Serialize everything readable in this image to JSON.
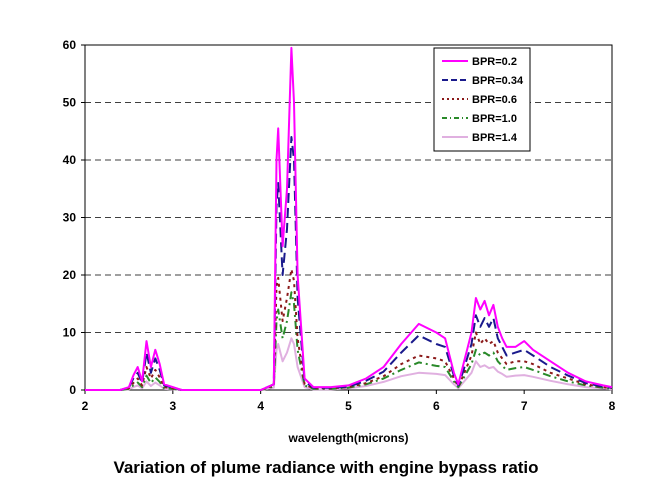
{
  "chart_data": {
    "type": "line",
    "title": "Variation of plume radiance with engine bypass ratio",
    "xlabel": "wavelength(microns)",
    "ylabel": "",
    "xlim": [
      2,
      8
    ],
    "ylim": [
      0,
      60
    ],
    "xticks": [
      2,
      3,
      4,
      5,
      6,
      7,
      8
    ],
    "yticks": [
      0,
      10,
      20,
      30,
      40,
      50,
      60
    ],
    "grid": "horizontal-dashed",
    "legend_position": "top-right",
    "x": [
      2.0,
      2.4,
      2.5,
      2.55,
      2.6,
      2.65,
      2.7,
      2.75,
      2.8,
      2.85,
      2.9,
      3.0,
      3.1,
      3.5,
      4.0,
      4.15,
      4.18,
      4.2,
      4.25,
      4.3,
      4.35,
      4.38,
      4.42,
      4.5,
      4.6,
      4.8,
      5.0,
      5.2,
      5.4,
      5.6,
      5.8,
      6.0,
      6.1,
      6.2,
      6.25,
      6.3,
      6.4,
      6.45,
      6.5,
      6.55,
      6.6,
      6.65,
      6.7,
      6.75,
      6.8,
      6.9,
      7.0,
      7.1,
      7.3,
      7.5,
      7.7,
      7.9,
      8.0
    ],
    "series": [
      {
        "name": "BPR=0.2",
        "color": "#ff00ff",
        "dash": "solid",
        "values": [
          0,
          0,
          0.5,
          2.5,
          4,
          1.5,
          8.5,
          4,
          7,
          4.5,
          1,
          0.5,
          0,
          0,
          0,
          1,
          40,
          45.5,
          25,
          35,
          59.5,
          50,
          20,
          2,
          0.5,
          0.5,
          0.8,
          2,
          4,
          8,
          11.5,
          10,
          9,
          3,
          1,
          4,
          10,
          16,
          14,
          15.5,
          13,
          14.8,
          11,
          9,
          7.5,
          7.5,
          8.5,
          7,
          5,
          3,
          1.5,
          0.8,
          0.5
        ]
      },
      {
        "name": "BPR=0.34",
        "color": "#1a1a8c",
        "dash": "10,5",
        "values": [
          0,
          0,
          0.4,
          2,
          3,
          1.2,
          6.5,
          3,
          5.5,
          3.5,
          0.8,
          0.4,
          0,
          0,
          0,
          1,
          32,
          36,
          20,
          28,
          44,
          40,
          16,
          1.5,
          0.4,
          0.4,
          0.6,
          1.6,
          3.2,
          6.5,
          9.5,
          8,
          7.5,
          2.5,
          0.8,
          3,
          8,
          13,
          11,
          12.5,
          11,
          12.5,
          9,
          7.5,
          6,
          6.5,
          7,
          6,
          4,
          2.5,
          1.2,
          0.6,
          0.4
        ]
      },
      {
        "name": "BPR=0.6",
        "color": "#8b1a1a",
        "dash": "3,4",
        "values": [
          0,
          0,
          0.3,
          1.2,
          2,
          0.8,
          4,
          2,
          3.5,
          2.2,
          0.5,
          0.3,
          0,
          0,
          0,
          0.8,
          18,
          19.5,
          12,
          16,
          21,
          19,
          9,
          1,
          0.3,
          0.3,
          0.5,
          1.2,
          2.4,
          4.5,
          6,
          5.5,
          5,
          2,
          0.6,
          2.3,
          6,
          10,
          8,
          9,
          8,
          8.5,
          6.5,
          5.5,
          4.5,
          5,
          5,
          4.5,
          3,
          2,
          1,
          0.5,
          0.3
        ]
      },
      {
        "name": "BPR=1.0",
        "color": "#2a8a2a",
        "dash": "8,4,2,4",
        "values": [
          0,
          0,
          0.2,
          0.8,
          1.3,
          0.5,
          2.5,
          1.2,
          2.2,
          1.4,
          0.3,
          0.2,
          0,
          0,
          0,
          0.6,
          12,
          14,
          9,
          12,
          17,
          15,
          7,
          0.8,
          0.2,
          0.2,
          0.4,
          1,
          2,
          3.5,
          4.8,
          4.2,
          4,
          1.5,
          0.5,
          1.8,
          4.5,
          7,
          6,
          6.5,
          6,
          6.5,
          5,
          4.2,
          3.5,
          3.8,
          4,
          3.5,
          2.4,
          1.5,
          0.8,
          0.4,
          0.2
        ]
      },
      {
        "name": "BPR=1.4",
        "color": "#e0b0e0",
        "dash": "solid",
        "values": [
          0,
          0,
          0.1,
          0.5,
          0.8,
          0.3,
          1.5,
          0.7,
          1.3,
          0.8,
          0.2,
          0.1,
          0,
          0,
          0,
          0.4,
          7,
          8,
          5,
          6.5,
          9,
          8,
          4,
          0.5,
          0.1,
          0.1,
          0.3,
          0.7,
          1.4,
          2.4,
          3,
          2.8,
          2.6,
          1,
          0.3,
          1.2,
          3,
          5,
          4,
          4.3,
          3.8,
          4,
          3.2,
          2.8,
          2.3,
          2.5,
          2.6,
          2.3,
          1.6,
          1,
          0.5,
          0.3,
          0.1
        ]
      }
    ]
  }
}
